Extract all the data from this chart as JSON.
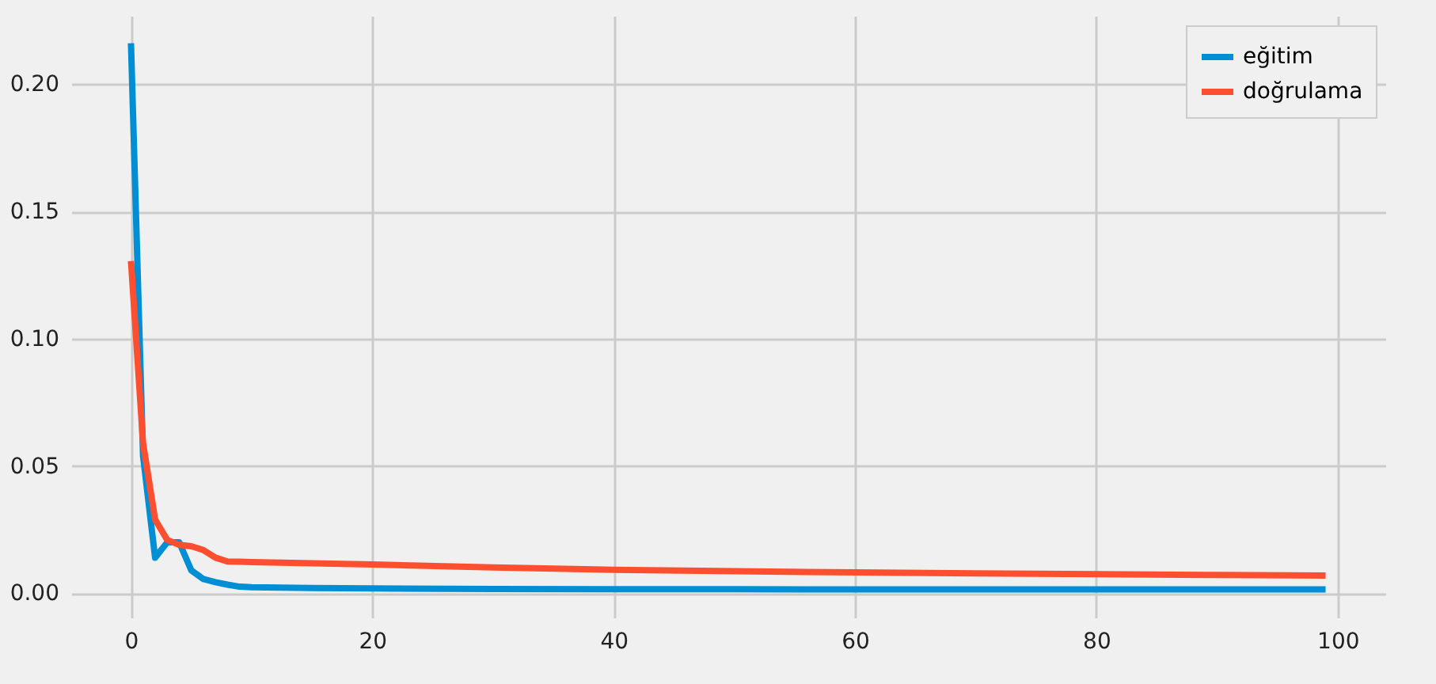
{
  "chart_data": {
    "type": "line",
    "xlim": [
      -4.95,
      103.95
    ],
    "xticks": [
      0,
      20,
      40,
      60,
      80,
      100
    ],
    "ylim": [
      -0.0095,
      0.2268
    ],
    "yticks": [
      {
        "value": 0,
        "label": "0.00"
      },
      {
        "value": 0.05,
        "label": "0.05"
      },
      {
        "value": 0.1,
        "label": "0.10"
      },
      {
        "value": 0.15,
        "label": "0.15"
      },
      {
        "value": 0.2,
        "label": "0.20"
      }
    ],
    "grid": true,
    "legend": "top right",
    "line_style": "solid",
    "x": [
      0,
      1,
      2,
      3,
      4,
      5,
      6,
      7,
      8,
      9,
      10,
      15,
      20,
      30,
      40,
      50,
      60,
      70,
      80,
      90,
      99
    ],
    "series": [
      {
        "name": "eğitim",
        "color": "#008fd5",
        "values": [
          0.216,
          0.054,
          0.014,
          0.02,
          0.02,
          0.009,
          0.0056,
          0.0044,
          0.0034,
          0.0026,
          0.0024,
          0.0021,
          0.0019,
          0.0017,
          0.0016,
          0.0016,
          0.0015,
          0.0015,
          0.0015,
          0.0015,
          0.0015
        ]
      },
      {
        "name": "doğrulama",
        "color": "#fc4f30",
        "values": [
          0.1305,
          0.059,
          0.029,
          0.021,
          0.019,
          0.0185,
          0.017,
          0.014,
          0.0125,
          0.0124,
          0.0123,
          0.0118,
          0.0113,
          0.0102,
          0.0092,
          0.0087,
          0.0082,
          0.0078,
          0.0075,
          0.0072,
          0.007
        ]
      }
    ]
  }
}
